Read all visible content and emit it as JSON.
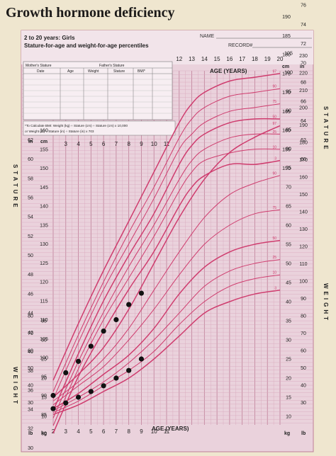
{
  "header": {
    "title": "Growth hormone deficiency"
  },
  "form": {
    "heading_line1": "2 to 20 years: Girls",
    "heading_line2": "Stature-for-age and weight-for-age percentiles",
    "name_label": "NAME",
    "record_label": "RECORD#",
    "table_headers": {
      "mothers_stature": "Mother's Stature",
      "fathers_stature": "Father's Stature",
      "date": "Date",
      "age": "Age",
      "weight": "Weight",
      "stature": "Stature",
      "bmi": "BMI*"
    },
    "bmi_note_line1": "*To Calculate BMI: Weight (kg) ÷ Stature (cm) ÷ Stature (cm) x 10,000",
    "bmi_note_line2": "or Weight (lb) ÷ Stature (in) ÷ Stature (in) x 703"
  },
  "labels": {
    "age_years_top": "AGE (YEARS)",
    "age_years_bottom": "AGE (YEARS)",
    "stature_vertical": "STATURE",
    "weight_vertical": "WEIGHT",
    "unit_in": "in",
    "unit_cm": "cm",
    "unit_lb": "lb",
    "unit_kg": "kg"
  },
  "colors": {
    "paper": "#efe6cf",
    "grid_bg": "#ead2dc",
    "grid_line": "#d8a6bb",
    "grid_major": "#bf7f99",
    "percentile_curve": "#cf3c6e",
    "marker": "#111111",
    "title_text": "#1c1a19"
  },
  "chart_data": [
    {
      "type": "line",
      "title": "",
      "xlabel": "AGE (YEARS)",
      "ylabel": "STATURE",
      "xlim": [
        2,
        20
      ],
      "ylim": [
        80,
        190
      ],
      "x_ticks_bottom": [
        2,
        3,
        4,
        5,
        6,
        7,
        8,
        9,
        10,
        11
      ],
      "x_ticks_top": [
        12,
        13,
        14,
        15,
        16,
        17,
        18,
        19,
        20
      ],
      "y_ticks_left_cm": [
        80,
        85,
        90,
        95,
        100,
        105,
        110,
        115,
        120,
        125,
        130,
        135,
        140,
        145,
        150,
        155,
        160
      ],
      "y_ticks_left_in": [
        30,
        32,
        34,
        36,
        38,
        40,
        42,
        44,
        46,
        48,
        50,
        52,
        54,
        56,
        58,
        60,
        62
      ],
      "y_ticks_right_cm": [
        150,
        155,
        160,
        165,
        170,
        175,
        180,
        185,
        190
      ],
      "y_ticks_right_in": [
        60,
        62,
        64,
        66,
        68,
        70,
        72,
        74,
        76
      ],
      "x": [
        2,
        4,
        6,
        8,
        10,
        12,
        13,
        14,
        16,
        18,
        20
      ],
      "series": [
        {
          "name": "97",
          "values": [
            94,
            109,
            123,
            136,
            149,
            162,
            167,
            170,
            173,
            174,
            175
          ]
        },
        {
          "name": "90",
          "values": [
            91,
            106,
            120,
            133,
            145,
            158,
            163,
            166,
            169,
            170,
            171
          ]
        },
        {
          "name": "75",
          "values": [
            89,
            104,
            118,
            130,
            142,
            155,
            159,
            162,
            165,
            166,
            167
          ]
        },
        {
          "name": "50",
          "values": [
            86,
            101,
            115,
            127,
            138,
            151,
            156,
            159,
            162,
            163,
            163
          ]
        },
        {
          "name": "25",
          "values": [
            84,
            99,
            112,
            124,
            135,
            147,
            152,
            155,
            158,
            159,
            159
          ]
        },
        {
          "name": "10",
          "values": [
            82,
            97,
            110,
            121,
            132,
            144,
            149,
            152,
            154,
            155,
            155
          ]
        },
        {
          "name": "3",
          "values": [
            80,
            95,
            107,
            118,
            128,
            140,
            145,
            148,
            151,
            151,
            152
          ]
        }
      ],
      "patient_points": {
        "x": [
          2,
          3,
          4,
          5,
          6,
          7,
          8,
          9
        ],
        "values": [
          90,
          96,
          99,
          103,
          107,
          110,
          114,
          117
        ]
      }
    },
    {
      "type": "line",
      "title": "",
      "xlabel": "AGE (YEARS)",
      "ylabel": "WEIGHT",
      "xlim": [
        2,
        20
      ],
      "ylim": [
        10,
        105
      ],
      "y_ticks_left_kg": [
        10,
        15,
        20,
        25,
        30,
        35
      ],
      "y_ticks_left_lb": [
        30,
        40,
        50,
        60,
        70,
        80
      ],
      "y_ticks_right_kg": [
        10,
        15,
        20,
        25,
        30,
        35,
        40,
        45,
        50,
        55,
        60,
        65,
        70,
        75,
        80,
        85,
        90,
        95,
        100,
        105
      ],
      "y_ticks_right_lb": [
        30,
        40,
        50,
        60,
        70,
        80,
        90,
        100,
        110,
        120,
        130,
        140,
        150,
        160,
        170,
        180,
        190,
        200,
        210,
        220,
        230
      ],
      "x": [
        2,
        4,
        6,
        8,
        10,
        12,
        14,
        16,
        18,
        20
      ],
      "series": [
        {
          "name": "97",
          "values": [
            15,
            21,
            28,
            38,
            50,
            62,
            72,
            79,
            83,
            86
          ]
        },
        {
          "name": "90",
          "values": [
            14,
            19,
            25,
            33,
            43,
            53,
            62,
            68,
            71,
            73
          ]
        },
        {
          "name": "75",
          "values": [
            13,
            18,
            23,
            30,
            38,
            47,
            55,
            60,
            63,
            64
          ]
        },
        {
          "name": "50",
          "values": [
            12,
            16,
            21,
            26,
            33,
            42,
            49,
            53,
            55,
            56
          ]
        },
        {
          "name": "25",
          "values": [
            11.5,
            15,
            19,
            24,
            30,
            37,
            44,
            48,
            50,
            51
          ]
        },
        {
          "name": "10",
          "values": [
            11,
            14,
            18,
            22,
            27,
            34,
            40,
            44,
            46,
            47
          ]
        },
        {
          "name": "3",
          "values": [
            10.5,
            13,
            16.5,
            20,
            25,
            31,
            37,
            40,
            42,
            43
          ]
        }
      ],
      "patient_points": {
        "x": [
          2,
          3,
          4,
          5,
          6,
          7,
          8,
          9
        ],
        "values": [
          12,
          13.5,
          15,
          16.5,
          18,
          20,
          22,
          25
        ]
      }
    }
  ]
}
